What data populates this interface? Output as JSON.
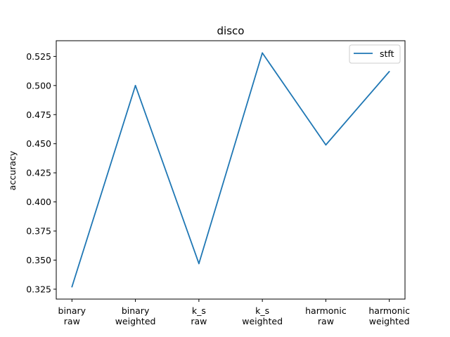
{
  "chart_data": {
    "type": "line",
    "title": "disco",
    "xlabel": "",
    "ylabel": "accuracy",
    "categories": [
      [
        "binary",
        "raw"
      ],
      [
        "binary",
        "weighted"
      ],
      [
        "k_s",
        "raw"
      ],
      [
        "k_s",
        "weighted"
      ],
      [
        "harmonic",
        "raw"
      ],
      [
        "harmonic",
        "weighted"
      ]
    ],
    "series": [
      {
        "name": "stft",
        "color": "#1f77b4",
        "values": [
          0.327,
          0.5,
          0.347,
          0.528,
          0.449,
          0.512
        ]
      }
    ],
    "ylim": [
      0.3165,
      0.5385
    ],
    "yticks": [
      "0.325",
      "0.350",
      "0.375",
      "0.400",
      "0.425",
      "0.450",
      "0.475",
      "0.500",
      "0.525"
    ],
    "legend_position": "top-right",
    "grid": false
  }
}
